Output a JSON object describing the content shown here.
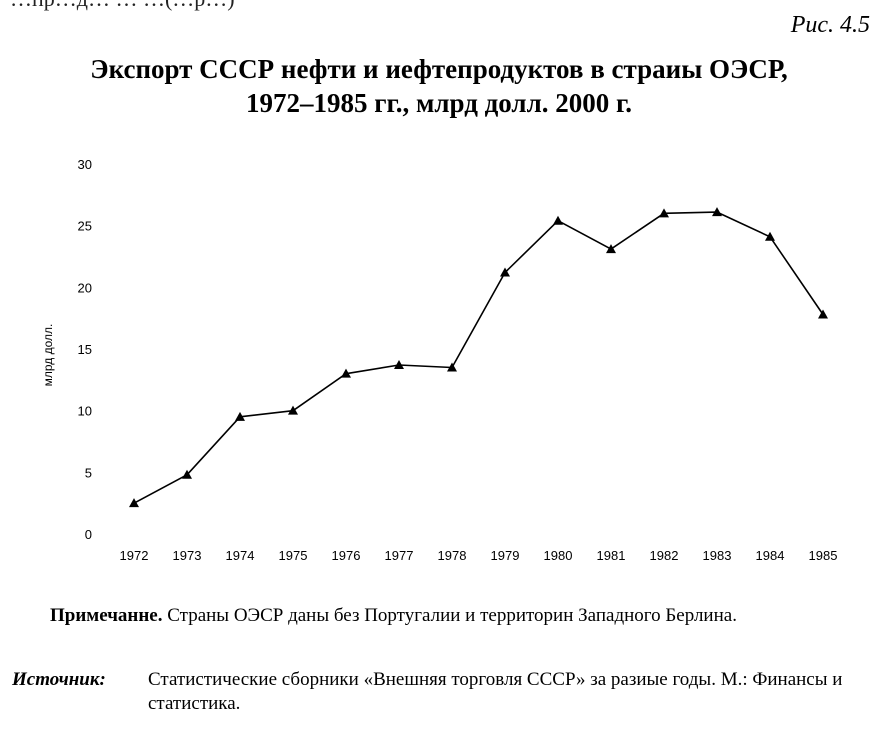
{
  "page": {
    "top_fragment": "…пр…д… … …(…р…)",
    "figure_number": "Рис. 4.5",
    "title_line1": "Экспорт СССР нефти и иефтепродуктов в страиы ОЭСР,",
    "title_line2": "1972–1985 гг., млрд долл. 2000 г.",
    "note_label": "Примечанне.",
    "note_text": " Страны ОЭСР даны без Португалии и территорин Западного Берлина.",
    "source_label": "Источник:",
    "source_text": "Статистические сборники «Внешняя торговля СССР» за разиые годы. М.: Финансы и статистика."
  },
  "chart_data": {
    "type": "line",
    "title": "Экспорт СССР нефти и иефтепродуктов в страиы ОЭСР, 1972–1985 гг., млрд долл. 2000 г.",
    "xlabel": "",
    "ylabel": "млрд долл.",
    "categories": [
      "1972",
      "1973",
      "1974",
      "1975",
      "1976",
      "1977",
      "1978",
      "1979",
      "1980",
      "1981",
      "1982",
      "1983",
      "1984",
      "1985"
    ],
    "values": [
      2.5,
      4.8,
      9.5,
      10.0,
      13.0,
      13.7,
      13.5,
      21.2,
      25.4,
      23.1,
      26.0,
      26.1,
      24.1,
      17.8
    ],
    "yticks": [
      0,
      5,
      10,
      15,
      20,
      25,
      30
    ],
    "ylim": [
      0,
      30
    ],
    "marker": "triangle",
    "line_color": "#000000",
    "grid": false,
    "legend": "none"
  }
}
